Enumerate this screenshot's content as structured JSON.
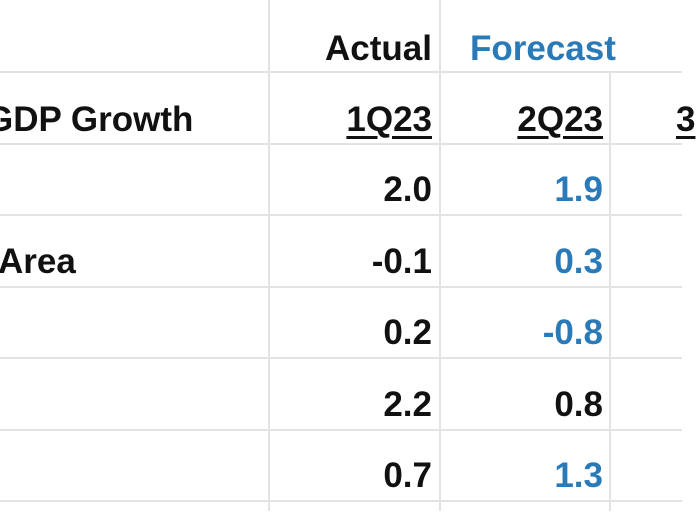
{
  "header_row": {
    "actual": "Actual",
    "forecast": "Forecast"
  },
  "subheader_row": {
    "label": "GDP Growth",
    "q1": "1Q23",
    "q2": "2Q23",
    "q3_partial": "3"
  },
  "rows": [
    {
      "label": "",
      "q1": "2.0",
      "q2": "1.9",
      "q2_forecast": true
    },
    {
      "label": "Area",
      "q1": "-0.1",
      "q2": "0.3",
      "q2_forecast": true
    },
    {
      "label": "",
      "q1": "0.2",
      "q2": "-0.8",
      "q2_forecast": true
    },
    {
      "label": "",
      "q1": "2.2",
      "q2": "0.8",
      "q2_forecast": false
    },
    {
      "label": "",
      "q1": "0.7",
      "q2": "1.3",
      "q2_forecast": true
    }
  ],
  "colors": {
    "forecast": "#2a7ab8",
    "text": "#111111",
    "gridline": "#e3e3e3"
  }
}
